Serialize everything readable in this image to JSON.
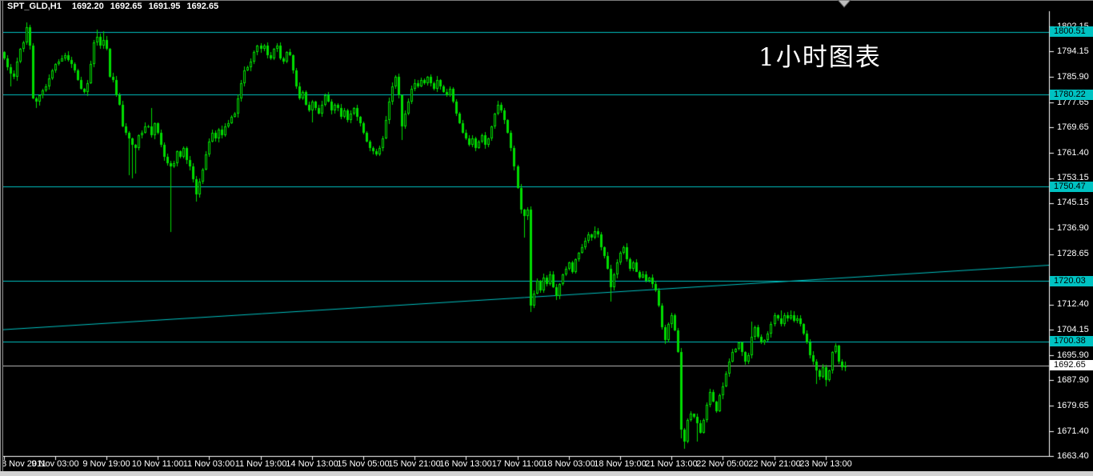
{
  "chart_data": {
    "type": "candlestick",
    "platform_style": "metatrader",
    "header": {
      "symbol_period": "SPT_GLD,H1",
      "open": "1692.20",
      "high": "1692.65",
      "low": "1691.95",
      "close": "1692.65"
    },
    "annotation": "1小时图表",
    "colors": {
      "background": "#000000",
      "candle_green": "#00DC00",
      "level_line_cyan": "#00C2C2",
      "trendline_cyan": "#00C2C2",
      "current_price_line": "#BDBDBD",
      "axis_text": "#FFFFFF",
      "badge_text": "#000000",
      "current_badge_bg": "#FFFFFF"
    },
    "y_axis": {
      "side": "right",
      "tick_labels": [
        "1802.15",
        "1794.15",
        "1785.90",
        "1777.65",
        "1769.65",
        "1761.40",
        "1753.15",
        "1745.15",
        "1736.90",
        "1728.65",
        "1712.40",
        "1704.15",
        "1695.90",
        "1687.90",
        "1679.65",
        "1671.40",
        "1663.40"
      ],
      "ylim": [
        1663.4,
        1806.0
      ]
    },
    "x_axis": {
      "labels": [
        "8 Nov 2011",
        "9 Nov 03:00",
        "9 Nov 19:00",
        "10 Nov 11:00",
        "11 Nov 03:00",
        "11 Nov 19:00",
        "14 Nov 13:00",
        "15 Nov 05:00",
        "15 Nov 21:00",
        "16 Nov 13:00",
        "17 Nov 11:00",
        "18 Nov 03:00",
        "18 Nov 19:00",
        "21 Nov 13:00",
        "22 Nov 05:00",
        "22 Nov 21:00",
        "23 Nov 13:00"
      ],
      "bars_per_label": 16
    },
    "horizontal_levels": [
      "1800.51",
      "1780.22",
      "1750.47",
      "1720.03",
      "1700.38"
    ],
    "current_price": "1692.65",
    "trendline": {
      "start_price": 1704.3,
      "end_price": 1725.2
    },
    "grid": "off",
    "legend": "none",
    "candles": {
      "bar_count": 263,
      "closes": [
        1792,
        1789,
        1787,
        1786,
        1791,
        1795,
        1797,
        1802,
        1796,
        1779,
        1778,
        1780,
        1781.5,
        1783,
        1785.5,
        1788,
        1790,
        1791,
        1792,
        1793,
        1791.5,
        1790,
        1788,
        1785,
        1782,
        1781,
        1784,
        1790,
        1797,
        1799,
        1796,
        1798,
        1795,
        1786,
        1785,
        1780,
        1777,
        1770,
        1768,
        1766,
        1764,
        1763,
        1767,
        1768,
        1770,
        1770,
        1767,
        1771,
        1768,
        1764,
        1760,
        1758,
        1757,
        1758,
        1762,
        1760,
        1763,
        1759,
        1757,
        1753,
        1748,
        1752,
        1756,
        1761,
        1765,
        1768,
        1766,
        1769,
        1767,
        1770,
        1771,
        1773,
        1774,
        1779,
        1784,
        1788,
        1789,
        1791,
        1794,
        1796,
        1795,
        1796,
        1793,
        1792,
        1795,
        1796,
        1792,
        1791,
        1794,
        1793,
        1788,
        1783,
        1779,
        1781,
        1777,
        1775,
        1778,
        1776,
        1774,
        1777,
        1780,
        1778,
        1775,
        1777,
        1776,
        1773,
        1775,
        1772,
        1774,
        1776,
        1773,
        1771,
        1768,
        1765,
        1763,
        1762,
        1761,
        1763,
        1766,
        1772,
        1778,
        1783,
        1786,
        1780,
        1770,
        1774,
        1778,
        1782,
        1784,
        1783,
        1785,
        1784,
        1786,
        1784,
        1782,
        1785,
        1783,
        1781,
        1780,
        1782,
        1778,
        1774,
        1771,
        1768,
        1766,
        1764,
        1766,
        1763,
        1765,
        1767,
        1764,
        1766,
        1770,
        1774,
        1777,
        1775,
        1772,
        1768,
        1763,
        1757,
        1750,
        1743,
        1741,
        1743,
        1712,
        1716,
        1720,
        1717,
        1721,
        1719,
        1722,
        1718,
        1715,
        1719,
        1722,
        1724,
        1726,
        1723,
        1727,
        1729,
        1731,
        1733,
        1735,
        1734,
        1736,
        1735,
        1731,
        1728,
        1724,
        1718,
        1722,
        1726,
        1729,
        1731,
        1727,
        1724,
        1726,
        1723,
        1721,
        1722,
        1720,
        1721,
        1719,
        1717,
        1712,
        1705,
        1701,
        1706,
        1709,
        1704,
        1697,
        1672,
        1668,
        1675,
        1677,
        1676,
        1674,
        1671,
        1675,
        1680,
        1684,
        1681,
        1678,
        1683,
        1686,
        1690,
        1694,
        1697,
        1698,
        1700,
        1697,
        1694,
        1696,
        1702,
        1705,
        1702,
        1700,
        1701,
        1703,
        1706,
        1709,
        1708,
        1706,
        1709,
        1708,
        1709,
        1707,
        1708,
        1706,
        1703,
        1700,
        1696,
        1694,
        1691,
        1689,
        1692,
        1688,
        1691,
        1697,
        1699,
        1694,
        1692,
        1692.65
      ],
      "wick_extremes": {
        "2": {
          "l": 1783
        },
        "7": {
          "h": 1803.5
        },
        "10": {
          "l": 1776
        },
        "29": {
          "h": 1801.2
        },
        "31": {
          "h": 1800.6
        },
        "39": {
          "l": 1754.2
        },
        "40": {
          "l": 1753.2
        },
        "41": {
          "l": 1754.6
        },
        "46": {
          "h": 1775.9
        },
        "52": {
          "l": 1735.9
        },
        "60": {
          "l": 1745.6
        },
        "96": {
          "l": 1771.3
        },
        "116": {
          "l": 1760.5
        },
        "124": {
          "l": 1765.5
        },
        "147": {
          "l": 1761.8
        },
        "162": {
          "l": 1734
        },
        "164": {
          "l": 1709.9
        },
        "184": {
          "h": 1737.6
        },
        "189": {
          "l": 1713.3
        },
        "206": {
          "l": 1699.5
        },
        "211": {
          "l": 1669
        },
        "212": {
          "l": 1665.6
        },
        "216": {
          "l": 1668
        },
        "233": {
          "h": 1706.8
        },
        "242": {
          "h": 1710.5
        },
        "245": {
          "h": 1710.4
        },
        "253": {
          "l": 1686.7
        },
        "256": {
          "l": 1686
        }
      }
    },
    "icons": {
      "cursor": "mouse-cursor-down-arrow"
    }
  }
}
